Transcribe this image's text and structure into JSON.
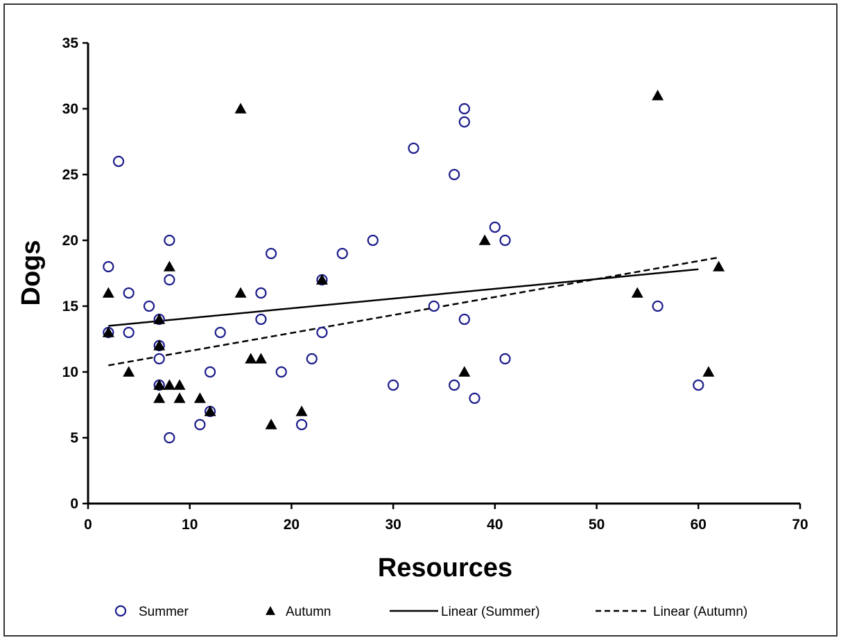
{
  "chart_data": {
    "type": "scatter",
    "xlabel": "Resources",
    "ylabel": "Dogs",
    "xlim": [
      0,
      70
    ],
    "ylim": [
      0,
      35
    ],
    "xticks": [
      0,
      10,
      20,
      30,
      40,
      50,
      60,
      70
    ],
    "yticks": [
      0,
      5,
      10,
      15,
      20,
      25,
      30,
      35
    ],
    "grid": false,
    "legend_position": "bottom",
    "colors": {
      "summer": "#1a1a8c",
      "autumn": "#000000",
      "axis": "#000000"
    },
    "series": [
      {
        "name": "Summer",
        "marker": "open-circle",
        "points": [
          [
            2,
            13
          ],
          [
            2,
            18
          ],
          [
            3,
            26
          ],
          [
            4,
            16
          ],
          [
            4,
            13
          ],
          [
            6,
            15
          ],
          [
            7,
            14
          ],
          [
            7,
            12
          ],
          [
            7,
            11
          ],
          [
            7,
            9
          ],
          [
            8,
            20
          ],
          [
            8,
            17
          ],
          [
            8,
            5
          ],
          [
            11,
            6
          ],
          [
            12,
            10
          ],
          [
            12,
            7
          ],
          [
            13,
            13
          ],
          [
            17,
            16
          ],
          [
            17,
            14
          ],
          [
            18,
            19
          ],
          [
            19,
            10
          ],
          [
            21,
            6
          ],
          [
            22,
            11
          ],
          [
            23,
            17
          ],
          [
            23,
            13
          ],
          [
            25,
            19
          ],
          [
            28,
            20
          ],
          [
            30,
            9
          ],
          [
            32,
            27
          ],
          [
            34,
            15
          ],
          [
            36,
            25
          ],
          [
            36,
            9
          ],
          [
            37,
            30
          ],
          [
            37,
            29
          ],
          [
            37,
            14
          ],
          [
            38,
            8
          ],
          [
            40,
            21
          ],
          [
            41,
            20
          ],
          [
            41,
            11
          ],
          [
            56,
            15
          ],
          [
            60,
            9
          ]
        ]
      },
      {
        "name": "Autumn",
        "marker": "filled-triangle",
        "points": [
          [
            2,
            16
          ],
          [
            2,
            13
          ],
          [
            4,
            10
          ],
          [
            7,
            14
          ],
          [
            7,
            12
          ],
          [
            7,
            9
          ],
          [
            7,
            8
          ],
          [
            8,
            18
          ],
          [
            8,
            9
          ],
          [
            9,
            9
          ],
          [
            9,
            8
          ],
          [
            11,
            8
          ],
          [
            12,
            7
          ],
          [
            15,
            30
          ],
          [
            15,
            16
          ],
          [
            16,
            11
          ],
          [
            17,
            11
          ],
          [
            18,
            6
          ],
          [
            21,
            7
          ],
          [
            23,
            17
          ],
          [
            37,
            10
          ],
          [
            39,
            20
          ],
          [
            54,
            16
          ],
          [
            56,
            31
          ],
          [
            61,
            10
          ],
          [
            62,
            18
          ]
        ]
      }
    ],
    "trendlines": [
      {
        "name": "Linear (Summer)",
        "style": "solid",
        "x": [
          2,
          60
        ],
        "y": [
          13.5,
          17.8
        ]
      },
      {
        "name": "Linear (Autumn)",
        "style": "dashed",
        "x": [
          2,
          62
        ],
        "y": [
          10.5,
          18.7
        ]
      }
    ]
  },
  "legend": {
    "items": [
      {
        "label": "Summer",
        "symbol": "open-circle"
      },
      {
        "label": "Autumn",
        "symbol": "filled-triangle"
      },
      {
        "label": "Linear (Summer)",
        "symbol": "solid-line"
      },
      {
        "label": "Linear (Autumn)",
        "symbol": "dashed-line"
      }
    ]
  }
}
